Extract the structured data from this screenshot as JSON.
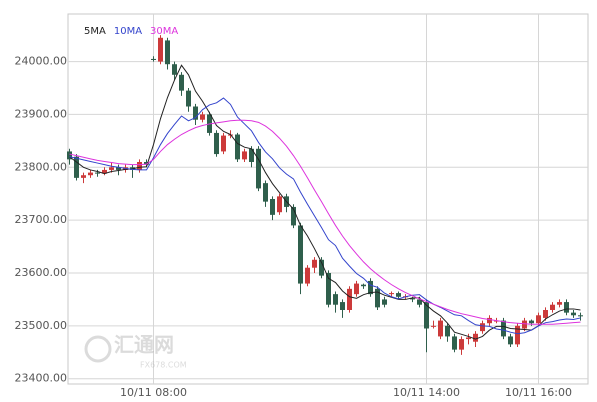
{
  "chart_data": {
    "type": "candlestick",
    "ylim": [
      23390,
      24090
    ],
    "yticks": [
      {
        "value": 23400,
        "label": "23400.00"
      },
      {
        "value": 23500,
        "label": "23500.00"
      },
      {
        "value": 23600,
        "label": "23600.00"
      },
      {
        "value": 23700,
        "label": "23700.00"
      },
      {
        "value": 23800,
        "label": "23800.00"
      },
      {
        "value": 23900,
        "label": "23900.00"
      },
      {
        "value": 24000,
        "label": "24000.00"
      }
    ],
    "grid": true,
    "up_color": "#cc3a3a",
    "down_color": "#2f5f4c",
    "watermark": [
      "汇通网",
      "FX678.COM"
    ],
    "categories": [
      null,
      null,
      null,
      null,
      null,
      null,
      null,
      null,
      null,
      null,
      null,
      null,
      "10/11 08:00",
      null,
      null,
      null,
      null,
      null,
      null,
      null,
      null,
      null,
      null,
      null,
      null,
      null,
      null,
      null,
      null,
      null,
      null,
      null,
      null,
      null,
      null,
      null,
      null,
      null,
      null,
      null,
      null,
      null,
      null,
      null,
      null,
      null,
      null,
      null,
      null,
      null,
      null,
      "10/11 14:00",
      null,
      null,
      null,
      null,
      null,
      null,
      null,
      null,
      null,
      null,
      null,
      null,
      null,
      null,
      null,
      "10/11 16:00",
      null,
      null,
      null,
      null,
      null,
      null
    ],
    "open": [
      23830,
      23820,
      23780,
      23785,
      23790,
      23788,
      23795,
      23800,
      23795,
      23800,
      23795,
      23810,
      24005,
      24000,
      24040,
      23995,
      23975,
      23945,
      23915,
      23890,
      23900,
      23865,
      23830,
      23860,
      23862,
      23815,
      23835,
      23835,
      23770,
      23740,
      23715,
      23745,
      23725,
      23690,
      23580,
      23610,
      23625,
      23600,
      23560,
      23545,
      23530,
      23560,
      23578,
      23585,
      23570,
      23550,
      23560,
      23562,
      23555,
      23552,
      23550,
      23545,
      23500,
      23480,
      23500,
      23480,
      23455,
      23475,
      23470,
      23490,
      23505,
      23510,
      23510,
      23480,
      23465,
      23495,
      23510,
      23505,
      23515,
      23530,
      23540,
      23545,
      23525,
      23520
    ],
    "high": [
      23835,
      23825,
      23790,
      23795,
      23795,
      23800,
      23808,
      23805,
      23805,
      23805,
      23815,
      23815,
      24010,
      24050,
      24045,
      24000,
      23980,
      23950,
      23920,
      23905,
      23905,
      23870,
      23865,
      23870,
      23865,
      23835,
      23840,
      23840,
      23775,
      23745,
      23750,
      23750,
      23730,
      23695,
      23615,
      23630,
      23630,
      23605,
      23565,
      23550,
      23575,
      23585,
      23580,
      23590,
      23575,
      23555,
      23565,
      23565,
      23560,
      23555,
      23555,
      23550,
      23510,
      23515,
      23505,
      23485,
      23480,
      23485,
      23490,
      23510,
      23520,
      23515,
      23515,
      23485,
      23505,
      23515,
      23512,
      23525,
      23535,
      23545,
      23550,
      23550,
      23530,
      23525
    ],
    "low": [
      23805,
      23775,
      23770,
      23780,
      23782,
      23785,
      23790,
      23785,
      23790,
      23780,
      23790,
      23800,
      24000,
      23995,
      23985,
      23965,
      23935,
      23905,
      23880,
      23885,
      23860,
      23820,
      23825,
      23855,
      23810,
      23810,
      23800,
      23755,
      23725,
      23700,
      23710,
      23715,
      23685,
      23560,
      23575,
      23600,
      23590,
      23535,
      23525,
      23515,
      23525,
      23555,
      23570,
      23555,
      23530,
      23535,
      23555,
      23550,
      23550,
      23545,
      23535,
      23450,
      23495,
      23475,
      23470,
      23450,
      23445,
      23465,
      23460,
      23485,
      23500,
      23505,
      23475,
      23460,
      23460,
      23490,
      23500,
      23500,
      23510,
      23525,
      23535,
      23520,
      23515,
      23510
    ],
    "close": [
      23815,
      23780,
      23785,
      23790,
      23788,
      23795,
      23800,
      23795,
      23800,
      23795,
      23810,
      23805,
      24003,
      24045,
      23995,
      23975,
      23945,
      23915,
      23890,
      23900,
      23865,
      23825,
      23860,
      23862,
      23815,
      23830,
      23810,
      23760,
      23735,
      23710,
      23745,
      23725,
      23690,
      23580,
      23610,
      23625,
      23595,
      23540,
      23540,
      23530,
      23570,
      23580,
      23575,
      23560,
      23535,
      23540,
      23562,
      23555,
      23556,
      23550,
      23540,
      23495,
      23500,
      23510,
      23480,
      23455,
      23475,
      23478,
      23485,
      23505,
      23515,
      23510,
      23480,
      23465,
      23500,
      23510,
      23505,
      23520,
      23530,
      23540,
      23545,
      23525,
      23520,
      23518
    ],
    "series": [
      {
        "name": "5MA",
        "color": "#222222",
        "values": [
          23820,
          23810,
          23800,
          23795,
          23792,
          23788,
          23792,
          23794,
          23796,
          23797,
          23800,
          23801,
          23843,
          23892,
          23932,
          23965,
          23993,
          23975,
          23944,
          23925,
          23903,
          23879,
          23868,
          23862,
          23845,
          23838,
          23835,
          23815,
          23790,
          23769,
          23752,
          23735,
          23721,
          23690,
          23670,
          23646,
          23620,
          23590,
          23582,
          23566,
          23555,
          23552,
          23559,
          23563,
          23564,
          23558,
          23554,
          23550,
          23550,
          23553,
          23553,
          23539,
          23528,
          23519,
          23505,
          23488,
          23484,
          23480,
          23475,
          23480,
          23492,
          23499,
          23499,
          23495,
          23494,
          23493,
          23492,
          23500,
          23513,
          23521,
          23528,
          23532,
          23532,
          23530
        ]
      },
      {
        "name": "10MA",
        "color": "#3344cc",
        "values": [
          23820,
          23817,
          23814,
          23811,
          23808,
          23805,
          23802,
          23800,
          23798,
          23796,
          23795,
          23795,
          23818,
          23843,
          23864,
          23881,
          23897,
          23888,
          23894,
          23909,
          23918,
          23922,
          23931,
          23919,
          23895,
          23882,
          23869,
          23847,
          23829,
          23816,
          23799,
          23787,
          23778,
          23753,
          23730,
          23708,
          23686,
          23663,
          23652,
          23628,
          23613,
          23599,
          23590,
          23577,
          23573,
          23562,
          23555,
          23551,
          23555,
          23558,
          23559,
          23549,
          23541,
          23535,
          23528,
          23521,
          23519,
          23510,
          23502,
          23500,
          23499,
          23494,
          23492,
          23488,
          23485,
          23487,
          23492,
          23500,
          23506,
          23508,
          23511,
          23513,
          23512,
          23515
        ]
      },
      {
        "name": "30MA",
        "color": "#dd33dd",
        "values": [
          23825,
          23822,
          23819,
          23816,
          23813,
          23811,
          23809,
          23807,
          23806,
          23805,
          23805,
          23806,
          23815,
          23830,
          23843,
          23853,
          23862,
          23869,
          23875,
          23879,
          23882,
          23884,
          23886,
          23888,
          23889,
          23889,
          23888,
          23885,
          23878,
          23868,
          23855,
          23840,
          23822,
          23802,
          23780,
          23757,
          23735,
          23712,
          23690,
          23670,
          23652,
          23636,
          23621,
          23608,
          23597,
          23587,
          23578,
          23570,
          23563,
          23557,
          23551,
          23546,
          23541,
          23536,
          23531,
          23527,
          23523,
          23520,
          23517,
          23514,
          23512,
          23510,
          23508,
          23506,
          23505,
          23504,
          23503,
          23503,
          23503,
          23503,
          23504,
          23505,
          23506,
          23507
        ]
      }
    ]
  }
}
